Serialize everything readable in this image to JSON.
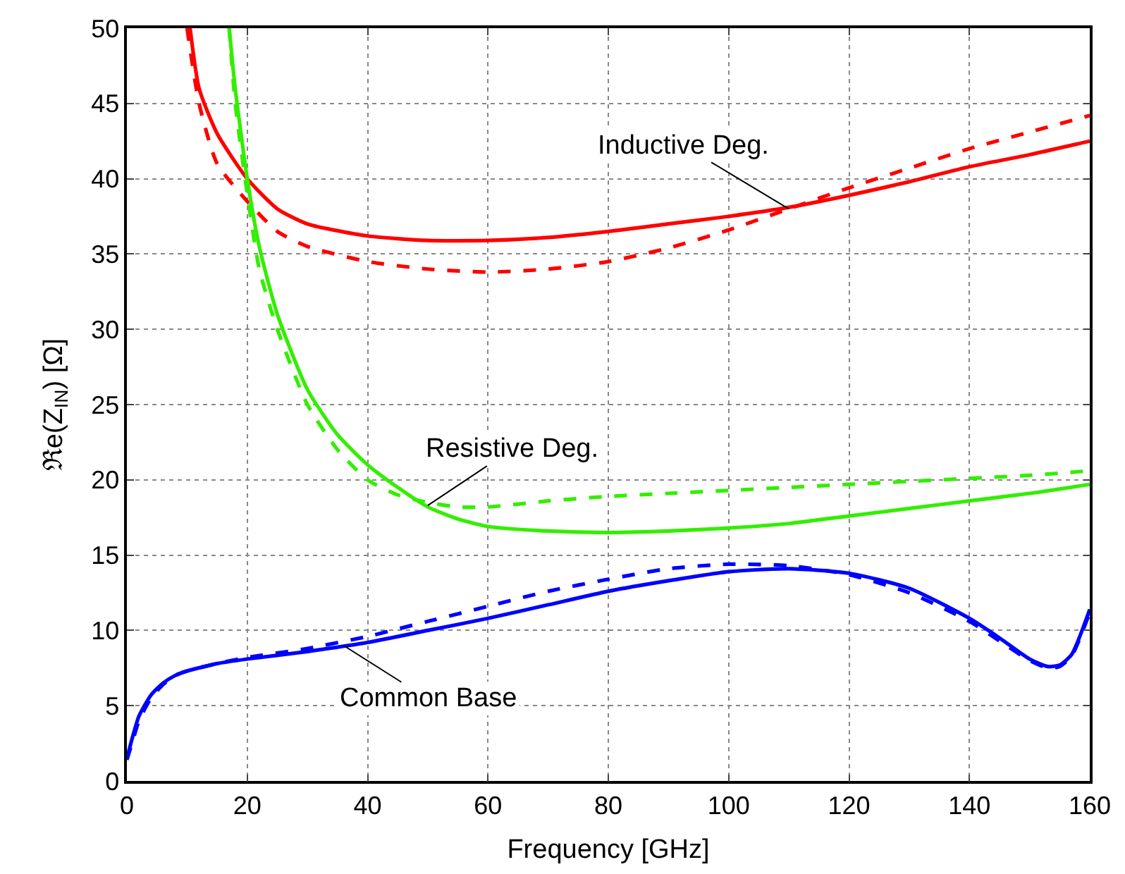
{
  "chart_data": {
    "type": "line",
    "xlabel": "Frequency [GHz]",
    "ylabel": "ℜe(Z$_{IN}$) [Ω]",
    "xlim": [
      0,
      160
    ],
    "xticks": [
      0,
      20,
      40,
      60,
      80,
      100,
      120,
      140,
      160
    ],
    "ylim": [
      0,
      50
    ],
    "yticks": [
      0,
      5,
      10,
      15,
      20,
      25,
      30,
      35,
      40,
      45,
      50
    ],
    "grid": true,
    "marker": "none",
    "annotations": [
      {
        "text": "Inductive Deg.",
        "x": 110,
        "y": 38
      },
      {
        "text": "Resistive Deg.",
        "x": 50,
        "y": 18.3
      },
      {
        "text": "Common Base",
        "x": 36,
        "y": 9
      }
    ],
    "series": [
      {
        "color": "#ff0000",
        "line_style": "solid",
        "x": [
          10.5,
          12,
          15,
          20,
          25,
          30,
          40,
          50,
          60,
          70,
          80,
          90,
          100,
          110,
          120,
          130,
          140,
          150,
          160
        ],
        "values": [
          50,
          46,
          43,
          40,
          38,
          37,
          36.2,
          35.9,
          35.9,
          36.1,
          36.5,
          37,
          37.5,
          38.1,
          38.9,
          39.8,
          40.8,
          41.6,
          42.5
        ]
      },
      {
        "color": "#ff0000",
        "line_style": "dashed",
        "x": [
          10,
          12,
          15,
          20,
          25,
          30,
          40,
          50,
          60,
          70,
          80,
          90,
          100,
          110,
          120,
          130,
          140,
          150,
          160
        ],
        "values": [
          50,
          45,
          41,
          38.5,
          36.5,
          35.5,
          34.5,
          34,
          33.8,
          34,
          34.5,
          35.4,
          36.6,
          38,
          39.4,
          40.7,
          42,
          43.1,
          44.2
        ]
      },
      {
        "color": "#33ee00",
        "line_style": "solid",
        "x": [
          17,
          18,
          20,
          22,
          25,
          30,
          35,
          40,
          45,
          50,
          55,
          60,
          70,
          80,
          90,
          100,
          110,
          120,
          130,
          140,
          150,
          160
        ],
        "values": [
          50,
          46,
          40,
          35.5,
          31,
          26,
          23,
          21,
          19.5,
          18.2,
          17.4,
          16.9,
          16.6,
          16.5,
          16.6,
          16.8,
          17.1,
          17.6,
          18.1,
          18.6,
          19.1,
          19.7
        ]
      },
      {
        "color": "#33ee00",
        "line_style": "dashed",
        "x": [
          17,
          18,
          20,
          22,
          25,
          30,
          35,
          40,
          45,
          50,
          55,
          60,
          70,
          80,
          90,
          100,
          110,
          120,
          130,
          140,
          150,
          160
        ],
        "values": [
          50,
          45,
          39,
          34,
          30,
          25,
          22,
          20,
          19,
          18.5,
          18.2,
          18.2,
          18.6,
          18.9,
          19.1,
          19.3,
          19.5,
          19.7,
          19.9,
          20.1,
          20.3,
          20.6
        ]
      },
      {
        "color": "#0000ff",
        "line_style": "solid",
        "x": [
          0,
          1,
          2,
          4,
          6,
          8,
          10,
          15,
          20,
          30,
          40,
          50,
          60,
          70,
          80,
          90,
          100,
          110,
          120,
          130,
          140,
          145,
          150,
          153,
          155,
          157,
          160
        ],
        "values": [
          1.5,
          3,
          4.3,
          5.7,
          6.5,
          7,
          7.3,
          7.8,
          8.1,
          8.6,
          9.2,
          10,
          10.8,
          11.7,
          12.6,
          13.3,
          13.9,
          14.1,
          13.8,
          12.8,
          10.8,
          9.5,
          8.1,
          7.6,
          7.7,
          8.4,
          11.4
        ]
      },
      {
        "color": "#0000ff",
        "line_style": "dashed",
        "x": [
          0,
          1,
          2,
          4,
          6,
          8,
          10,
          15,
          20,
          30,
          40,
          50,
          60,
          70,
          80,
          90,
          100,
          110,
          120,
          130,
          140,
          145,
          150,
          153,
          155,
          157,
          160
        ],
        "values": [
          1.4,
          2.7,
          4,
          5.5,
          6.4,
          7,
          7.3,
          7.8,
          8.2,
          8.8,
          9.6,
          10.6,
          11.6,
          12.6,
          13.4,
          14.1,
          14.4,
          14.3,
          13.7,
          12.5,
          10.6,
          9.3,
          8,
          7.5,
          7.6,
          8.3,
          11.2
        ]
      }
    ]
  }
}
